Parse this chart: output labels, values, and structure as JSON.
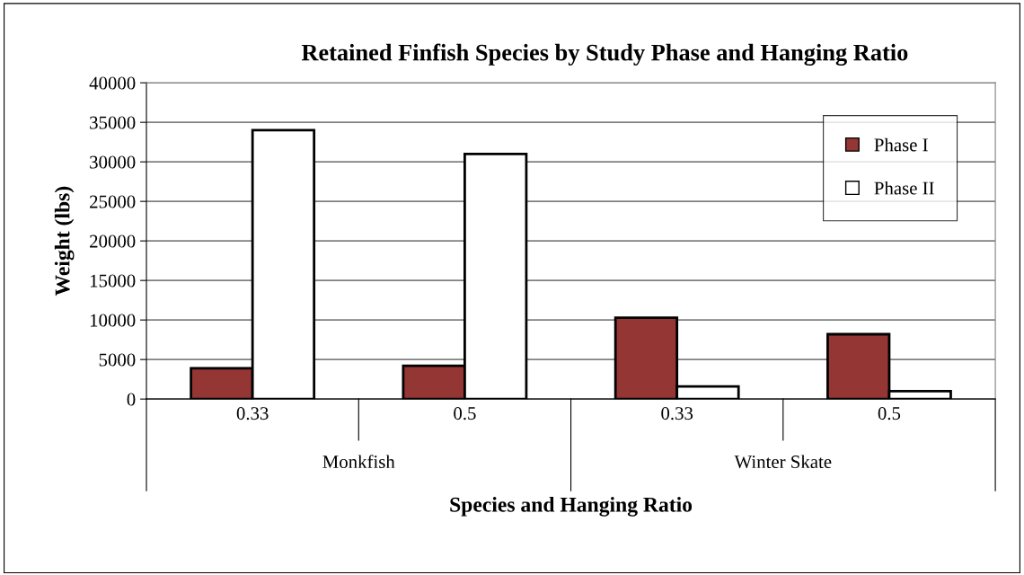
{
  "chart_data": {
    "type": "bar",
    "title": "Retained Finfish Species by Study Phase and Hanging Ratio",
    "xlabel": "Species and Hanging Ratio",
    "ylabel": "Weight (lbs)",
    "categories": [
      "0.33",
      "0.5",
      "0.33",
      "0.5"
    ],
    "annotations": [
      "Monkfish",
      "Winter Skate"
    ],
    "series": [
      {
        "name": "Phase I",
        "color": "#943634",
        "values": [
          3900,
          4200,
          10300,
          8200
        ]
      },
      {
        "name": "Phase II",
        "color": "#ffffff",
        "values": [
          34000,
          31000,
          1600,
          1000
        ]
      }
    ],
    "ylim": [
      0,
      40000
    ],
    "yticks": [
      0,
      5000,
      10000,
      15000,
      20000,
      25000,
      30000,
      35000,
      40000
    ],
    "grid": "y",
    "legend": "right"
  }
}
